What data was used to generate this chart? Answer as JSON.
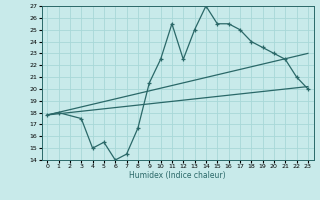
{
  "title": "",
  "xlabel": "Humidex (Indice chaleur)",
  "bg_color": "#c8eaea",
  "grid_color": "#a8d8d8",
  "line_color": "#2a6868",
  "xlim": [
    -0.5,
    23.5
  ],
  "ylim": [
    14,
    27
  ],
  "xticks": [
    0,
    1,
    2,
    3,
    4,
    5,
    6,
    7,
    8,
    9,
    10,
    11,
    12,
    13,
    14,
    15,
    16,
    17,
    18,
    19,
    20,
    21,
    22,
    23
  ],
  "yticks": [
    14,
    15,
    16,
    17,
    18,
    19,
    20,
    21,
    22,
    23,
    24,
    25,
    26,
    27
  ],
  "zigzag_x": [
    0,
    1,
    3,
    4,
    5,
    6,
    7,
    8,
    9,
    10,
    11,
    12,
    13,
    14,
    15,
    16,
    17,
    18,
    19,
    20,
    21,
    22,
    23
  ],
  "zigzag_y": [
    17.8,
    18.0,
    17.5,
    15.0,
    15.5,
    14.0,
    14.5,
    16.7,
    20.5,
    22.5,
    25.5,
    22.5,
    25.0,
    27.0,
    25.5,
    25.5,
    25.0,
    24.0,
    23.5,
    23.0,
    22.5,
    21.0,
    20.0
  ],
  "line2_x": [
    0,
    23
  ],
  "line2_y": [
    17.8,
    23.0
  ],
  "line3_x": [
    0,
    23
  ],
  "line3_y": [
    17.8,
    20.2
  ]
}
